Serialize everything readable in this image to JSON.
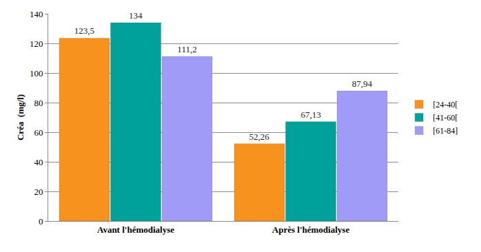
{
  "chart_data": {
    "type": "bar",
    "y_label": "Créa  (mg/l)",
    "categories": [
      "Avant l'hémodialyse",
      "Après l'hémodialyse"
    ],
    "series": [
      {
        "name": "[24-40[",
        "color": "#F7921E",
        "values": [
          123.5,
          52.26
        ],
        "value_labels": [
          "123,5",
          "52,26"
        ]
      },
      {
        "name": "[41-60[",
        "color": "#00A19A",
        "values": [
          134,
          67.13
        ],
        "value_labels": [
          "134",
          "67,13"
        ]
      },
      {
        "name": "[61-84]",
        "color": "#9F9BF7",
        "values": [
          111.2,
          87.94
        ],
        "value_labels": [
          "111,2",
          "87,94"
        ]
      }
    ],
    "ylim": [
      0,
      140
    ],
    "yticks": [
      0,
      20,
      40,
      60,
      80,
      100,
      120,
      140
    ],
    "grid": true,
    "legend": "right",
    "data_labels": true
  }
}
